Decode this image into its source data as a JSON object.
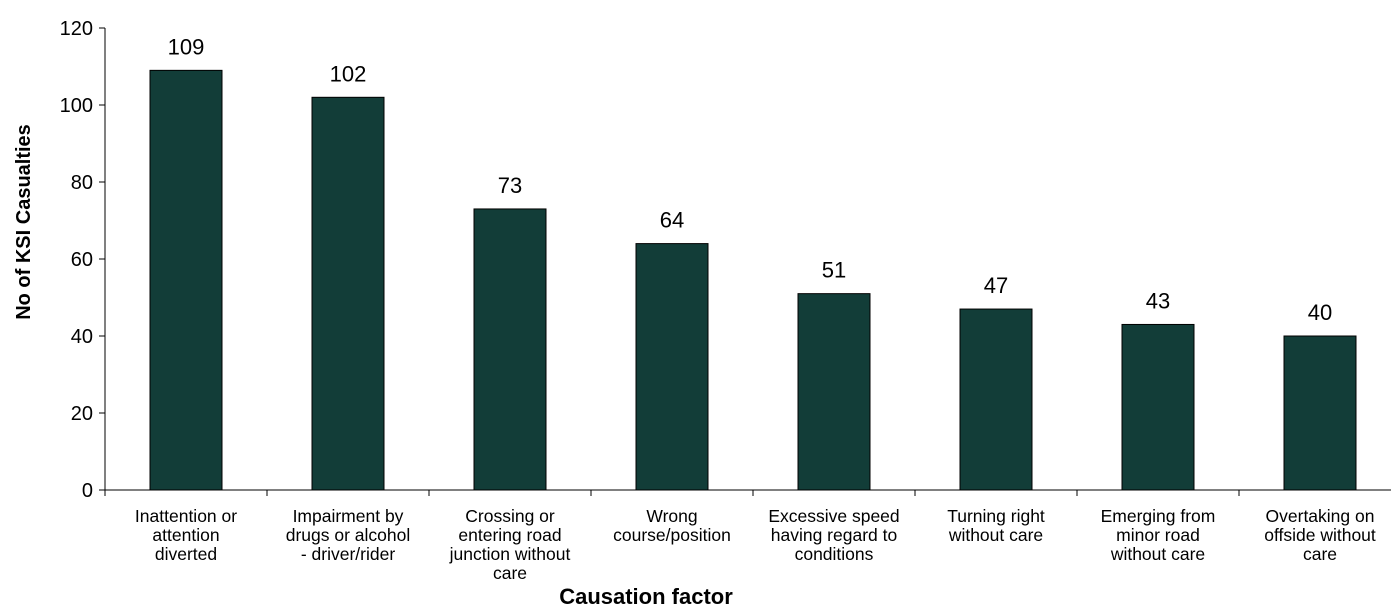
{
  "chart_data": {
    "type": "bar",
    "categories": [
      "Inattention or attention diverted",
      "Impairment by drugs or alcohol - driver/rider",
      "Crossing or entering road junction without care",
      "Wrong course/position",
      "Excessive speed having regard to conditions",
      "Turning right without care",
      "Emerging from minor road without care",
      "Overtaking on offside without care"
    ],
    "category_lines": [
      [
        "Inattention or",
        "attention",
        "diverted"
      ],
      [
        "Impairment by",
        "drugs or alcohol",
        "- driver/rider"
      ],
      [
        "Crossing or",
        "entering road",
        "junction without",
        "care"
      ],
      [
        "Wrong",
        "course/position"
      ],
      [
        "Excessive speed",
        "having regard to",
        "conditions"
      ],
      [
        "Turning right",
        "without care"
      ],
      [
        "Emerging from",
        "minor road",
        "without care"
      ],
      [
        "Overtaking on",
        "offside without",
        "care"
      ]
    ],
    "values": [
      109,
      102,
      73,
      64,
      51,
      47,
      43,
      40
    ],
    "data_labels": [
      "109",
      "102",
      "73",
      "64",
      "51",
      "47",
      "43",
      "40"
    ],
    "xlabel": "Causation factor",
    "ylabel": "No of KSI Casualties",
    "ylim": [
      0,
      120
    ],
    "yticks": [
      0,
      20,
      40,
      60,
      80,
      100,
      120
    ],
    "ytick_labels": [
      "0",
      "20",
      "40",
      "60",
      "80",
      "100",
      "120"
    ],
    "grid": false,
    "legend": "none",
    "bar_color": "#123d38",
    "bar_edge_color": "#000000"
  }
}
